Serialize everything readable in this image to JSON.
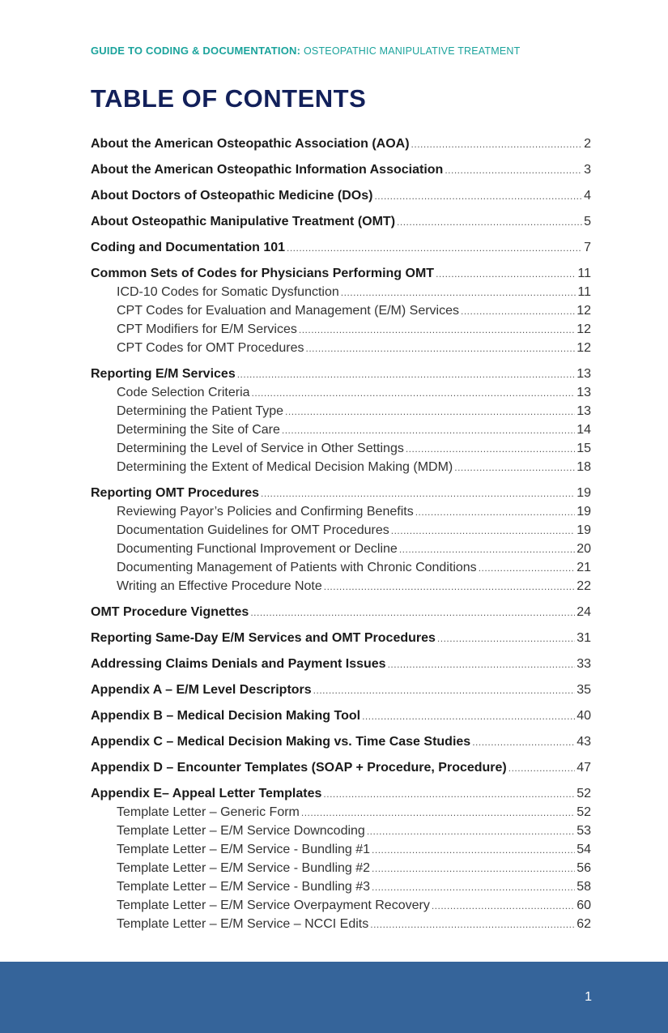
{
  "header": {
    "guide_bold": "GUIDE TO CODING & DOCUMENTATION:",
    "guide_light": "OSTEOPATHIC MANIPULATIVE TREATMENT"
  },
  "title": "TABLE OF CONTENTS",
  "entries": [
    {
      "level": "main",
      "text": "About the American Osteopathic Association (AOA)",
      "page": "2"
    },
    {
      "level": "main",
      "text": "About the American Osteopathic Information Association",
      "page": "3"
    },
    {
      "level": "main",
      "text": "About Doctors of Osteopathic Medicine (DOs)",
      "page": "4"
    },
    {
      "level": "main",
      "text": "About Osteopathic Manipulative Treatment (OMT)",
      "page": "5"
    },
    {
      "level": "main",
      "text": "Coding and Documentation 101",
      "page": "7"
    },
    {
      "level": "main",
      "text": "Common Sets of Codes for Physicians Performing OMT",
      "page": "11"
    },
    {
      "level": "sub",
      "text": "ICD-10 Codes for Somatic Dysfunction",
      "page": "11"
    },
    {
      "level": "sub",
      "text": "CPT Codes for Evaluation and Management (E/M) Services",
      "page": "12"
    },
    {
      "level": "sub",
      "text": "CPT Modifiers for E/M Services",
      "page": "12"
    },
    {
      "level": "sub",
      "text": "CPT Codes for OMT Procedures",
      "page": "12"
    },
    {
      "level": "main",
      "text": "Reporting E/M Services",
      "page": "13"
    },
    {
      "level": "sub",
      "text": "Code Selection Criteria",
      "page": "13"
    },
    {
      "level": "sub",
      "text": "Determining the Patient Type",
      "page": "13"
    },
    {
      "level": "sub",
      "text": "Determining the Site of Care",
      "page": "14"
    },
    {
      "level": "sub",
      "text": "Determining the Level of Service in Other Settings",
      "page": "15"
    },
    {
      "level": "sub",
      "text": "Determining the Extent of Medical Decision Making (MDM)",
      "page": "18"
    },
    {
      "level": "main",
      "text": "Reporting OMT Procedures",
      "page": "19"
    },
    {
      "level": "sub",
      "text": "Reviewing Payor’s Policies and Confirming Benefits",
      "page": "19"
    },
    {
      "level": "sub",
      "text": "Documentation Guidelines for OMT Procedures",
      "page": "19"
    },
    {
      "level": "sub",
      "text": "Documenting Functional Improvement or Decline",
      "page": "20"
    },
    {
      "level": "sub",
      "text": "Documenting Management of Patients with Chronic Conditions",
      "page": "21"
    },
    {
      "level": "sub",
      "text": "Writing an Effective Procedure Note",
      "page": "22"
    },
    {
      "level": "main",
      "text": "OMT Procedure Vignettes",
      "page": "24"
    },
    {
      "level": "main",
      "text": "Reporting Same-Day E/M Services and OMT Procedures",
      "page": "31"
    },
    {
      "level": "main",
      "text": "Addressing Claims Denials and Payment Issues",
      "page": "33"
    },
    {
      "level": "main",
      "text": "Appendix A – E/M Level Descriptors",
      "page": "35"
    },
    {
      "level": "main",
      "text": "Appendix B – Medical Decision Making Tool",
      "page": "40"
    },
    {
      "level": "main",
      "text": "Appendix C – Medical Decision Making vs. Time Case Studies",
      "page": "43"
    },
    {
      "level": "main",
      "text": "Appendix D – Encounter Templates (SOAP + Procedure, Procedure)",
      "page": "47"
    },
    {
      "level": "main",
      "text": "Appendix E– Appeal Letter Templates",
      "page": "52"
    },
    {
      "level": "sub",
      "text": "Template Letter – Generic Form",
      "page": "52"
    },
    {
      "level": "sub",
      "text": "Template Letter – E/M Service Downcoding",
      "page": "53"
    },
    {
      "level": "sub",
      "text": "Template Letter – E/M Service - Bundling #1",
      "page": "54"
    },
    {
      "level": "sub",
      "text": "Template Letter – E/M Service - Bundling #2",
      "page": "56"
    },
    {
      "level": "sub",
      "text": "Template Letter – E/M Service - Bundling #3",
      "page": "58"
    },
    {
      "level": "sub",
      "text": "Template Letter – E/M Service Overpayment Recovery",
      "page": "60"
    },
    {
      "level": "sub",
      "text": "Template Letter – E/M Service – NCCI Edits",
      "page": "62"
    }
  ],
  "footer": {
    "page_number": "1"
  },
  "colors": {
    "header_teal": "#1ba39c",
    "title_navy": "#12205a",
    "footer_blue": "#35649a"
  }
}
